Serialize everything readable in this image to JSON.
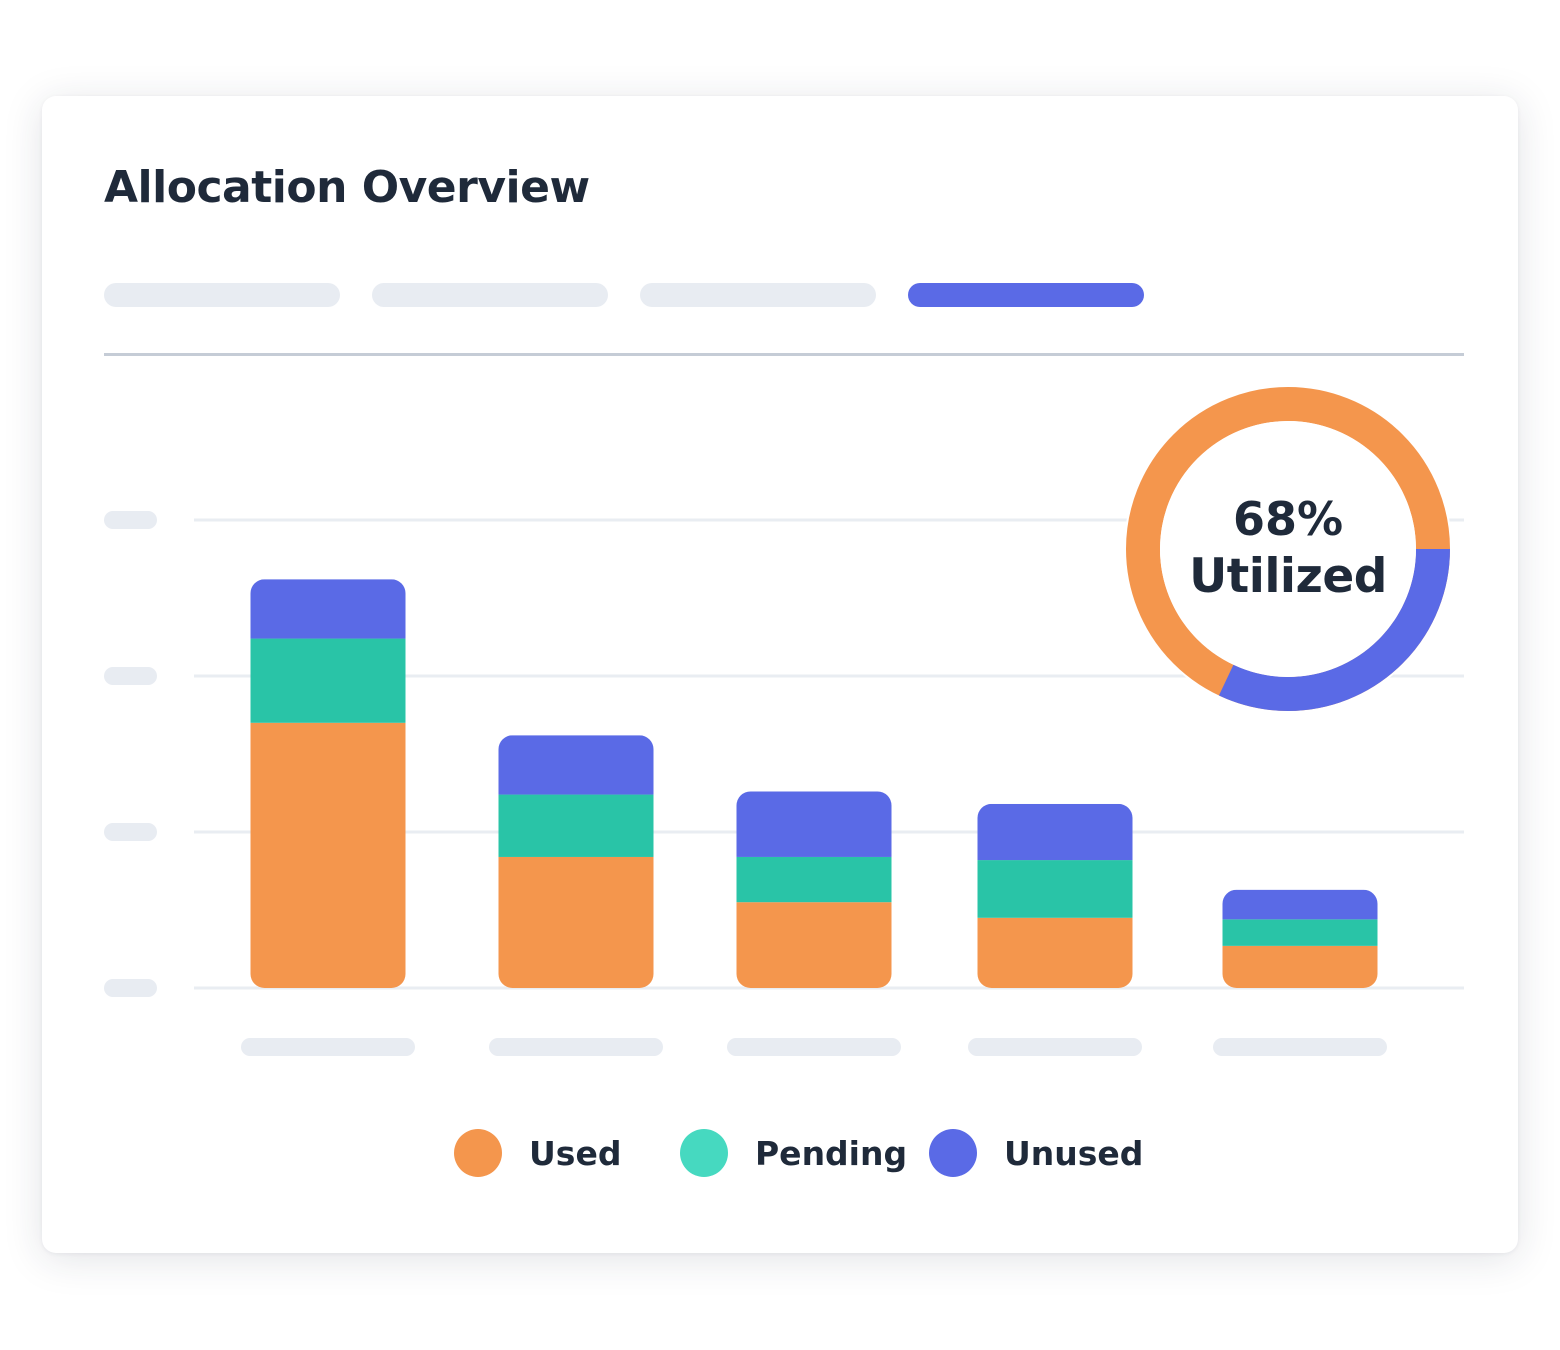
{
  "title": "Allocation Overview",
  "tabs": [
    {
      "active": false
    },
    {
      "active": false
    },
    {
      "active": false
    },
    {
      "active": true
    }
  ],
  "colors": {
    "used": "#f4964d",
    "pending": "#29c4a7",
    "pending_legend": "#46d9c0",
    "unused": "#5a6ae6",
    "placeholder": "#e8ecf2",
    "text": "#1f2a3a"
  },
  "chart_data": {
    "type": "bar",
    "stacked": true,
    "categories": [
      "",
      "",
      "",
      "",
      ""
    ],
    "series": [
      {
        "name": "Used",
        "values": [
          170,
          84,
          55,
          45,
          27
        ]
      },
      {
        "name": "Pending",
        "values": [
          54,
          40,
          29,
          37,
          17
        ]
      },
      {
        "name": "Unused",
        "values": [
          38,
          38,
          42,
          36,
          19
        ]
      }
    ],
    "ylim": [
      0,
      300
    ],
    "y_gridlines": [
      0,
      100,
      200,
      300
    ],
    "grid": true,
    "legend": "bottom-center"
  },
  "donut": {
    "percent_label": "68%",
    "caption": "Utilized",
    "value": 0.68
  },
  "legend": [
    {
      "label": "Used",
      "key": "used"
    },
    {
      "label": "Pending",
      "key": "pending_legend"
    },
    {
      "label": "Unused",
      "key": "unused"
    }
  ]
}
